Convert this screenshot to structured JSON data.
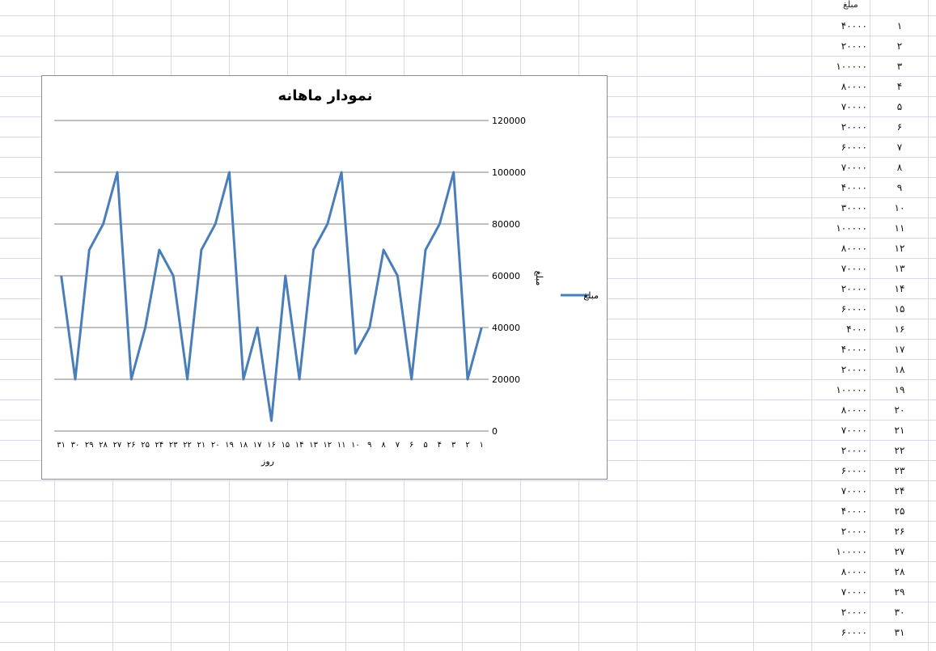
{
  "sheet": {
    "column_header": "مبلغ",
    "rows": [
      {
        "num": "۱",
        "amount": "۴۰۰۰۰"
      },
      {
        "num": "۲",
        "amount": "۲۰۰۰۰"
      },
      {
        "num": "۳",
        "amount": "۱۰۰۰۰۰"
      },
      {
        "num": "۴",
        "amount": "۸۰۰۰۰"
      },
      {
        "num": "۵",
        "amount": "۷۰۰۰۰"
      },
      {
        "num": "۶",
        "amount": "۲۰۰۰۰"
      },
      {
        "num": "۷",
        "amount": "۶۰۰۰۰"
      },
      {
        "num": "۸",
        "amount": "۷۰۰۰۰"
      },
      {
        "num": "۹",
        "amount": "۴۰۰۰۰"
      },
      {
        "num": "۱۰",
        "amount": "۳۰۰۰۰"
      },
      {
        "num": "۱۱",
        "amount": "۱۰۰۰۰۰"
      },
      {
        "num": "۱۲",
        "amount": "۸۰۰۰۰"
      },
      {
        "num": "۱۳",
        "amount": "۷۰۰۰۰"
      },
      {
        "num": "۱۴",
        "amount": "۲۰۰۰۰"
      },
      {
        "num": "۱۵",
        "amount": "۶۰۰۰۰"
      },
      {
        "num": "۱۶",
        "amount": "۴۰۰۰"
      },
      {
        "num": "۱۷",
        "amount": "۴۰۰۰۰"
      },
      {
        "num": "۱۸",
        "amount": "۲۰۰۰۰"
      },
      {
        "num": "۱۹",
        "amount": "۱۰۰۰۰۰"
      },
      {
        "num": "۲۰",
        "amount": "۸۰۰۰۰"
      },
      {
        "num": "۲۱",
        "amount": "۷۰۰۰۰"
      },
      {
        "num": "۲۲",
        "amount": "۲۰۰۰۰"
      },
      {
        "num": "۲۳",
        "amount": "۶۰۰۰۰"
      },
      {
        "num": "۲۴",
        "amount": "۷۰۰۰۰"
      },
      {
        "num": "۲۵",
        "amount": "۴۰۰۰۰"
      },
      {
        "num": "۲۶",
        "amount": "۲۰۰۰۰"
      },
      {
        "num": "۲۷",
        "amount": "۱۰۰۰۰۰"
      },
      {
        "num": "۲۸",
        "amount": "۸۰۰۰۰"
      },
      {
        "num": "۲۹",
        "amount": "۷۰۰۰۰"
      },
      {
        "num": "۳۰",
        "amount": "۲۰۰۰۰"
      },
      {
        "num": "۳۱",
        "amount": "۶۰۰۰۰"
      }
    ]
  },
  "chart_data": {
    "type": "line",
    "title": "نمودار ماهانه",
    "xlabel": "روز",
    "ylabel": "مبلغ",
    "ylim": [
      0,
      120000
    ],
    "yticks": [
      "0",
      "20000",
      "40000",
      "60000",
      "80000",
      "100000",
      "120000"
    ],
    "grid": true,
    "legend_position": "right",
    "categories": [
      "۱",
      "۲",
      "۳",
      "۴",
      "۵",
      "۶",
      "۷",
      "۸",
      "۹",
      "۱۰",
      "۱۱",
      "۱۲",
      "۱۳",
      "۱۴",
      "۱۵",
      "۱۶",
      "۱۷",
      "۱۸",
      "۱۹",
      "۲۰",
      "۲۱",
      "۲۲",
      "۲۳",
      "۲۴",
      "۲۵",
      "۲۶",
      "۲۷",
      "۲۸",
      "۲۹",
      "۳۰",
      "۳۱"
    ],
    "series": [
      {
        "name": "مبلغ",
        "color": "#4a7ebb",
        "values": [
          40000,
          20000,
          100000,
          80000,
          70000,
          20000,
          60000,
          70000,
          40000,
          30000,
          100000,
          80000,
          70000,
          20000,
          60000,
          4000,
          40000,
          20000,
          100000,
          80000,
          70000,
          20000,
          60000,
          70000,
          40000,
          20000,
          100000,
          80000,
          70000,
          20000,
          60000
        ]
      }
    ]
  }
}
